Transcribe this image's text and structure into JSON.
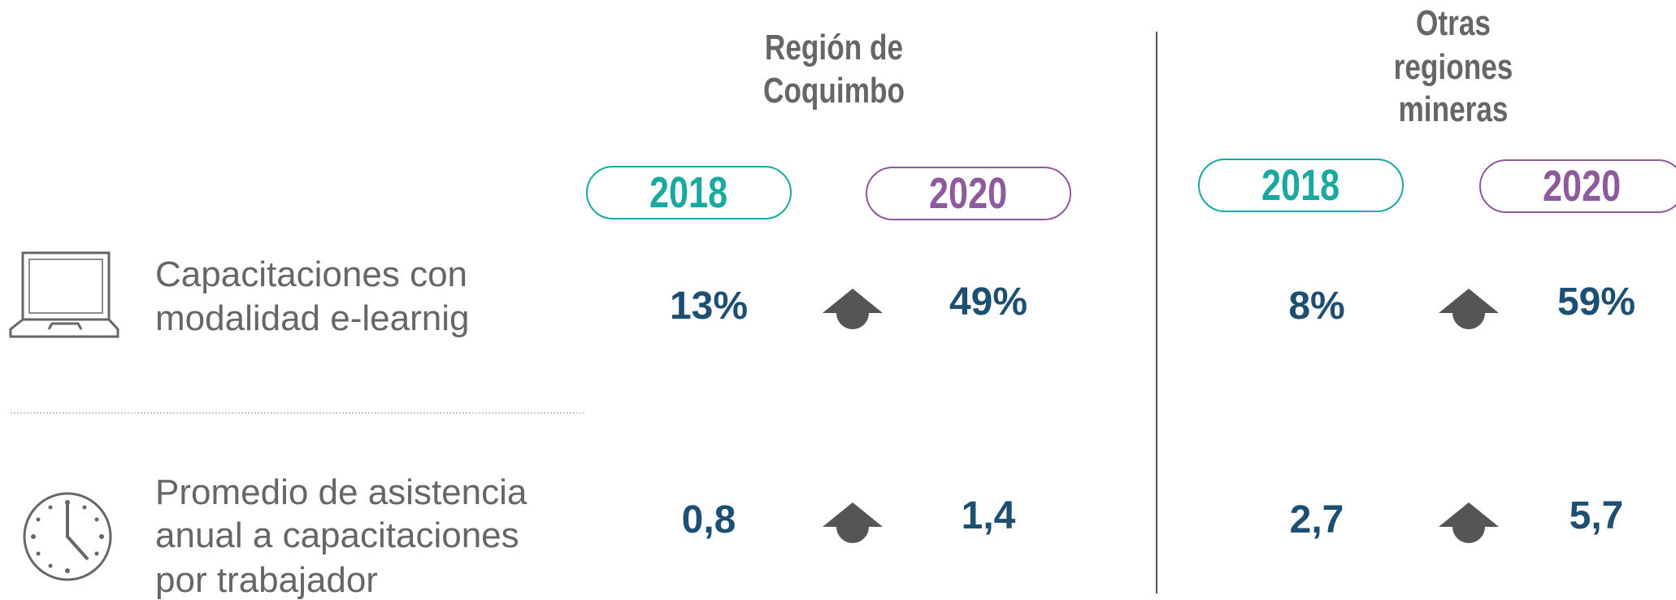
{
  "regions": [
    {
      "name_lines": [
        "Región de",
        "Coquimbo"
      ],
      "years": [
        "2018",
        "2020"
      ]
    },
    {
      "name_lines": [
        "Otras",
        "regiones",
        "mineras"
      ],
      "years": [
        "2018",
        "2020"
      ]
    }
  ],
  "rows": [
    {
      "label_lines": [
        "Capacitaciones con",
        "modalidad e-learnig"
      ],
      "values": [
        [
          "13%",
          "49%"
        ],
        [
          "8%",
          "59%"
        ]
      ]
    },
    {
      "label_lines": [
        "Promedio de asistencia",
        "anual a capacitaciones",
        "por trabajador"
      ],
      "values": [
        [
          "0,8",
          "1,4"
        ],
        [
          "2,7",
          "5,7"
        ]
      ]
    }
  ]
}
